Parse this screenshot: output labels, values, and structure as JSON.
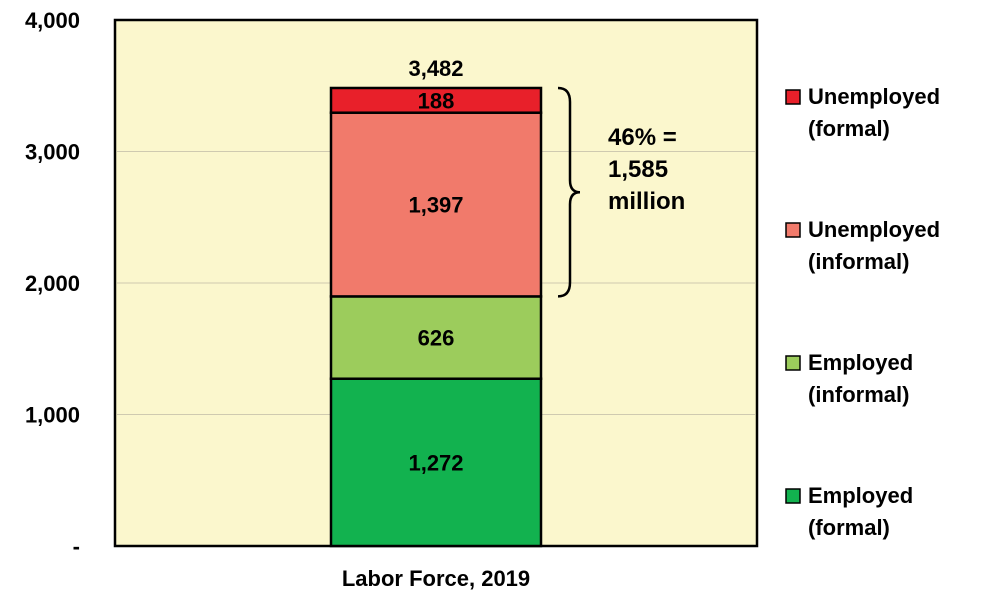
{
  "chart_data": {
    "type": "bar",
    "stacked": true,
    "categories": [
      "Labor Force, 2019"
    ],
    "series": [
      {
        "name": "Employed (formal)",
        "legend_lines": [
          "Employed",
          "(formal)"
        ],
        "values": [
          1272
        ],
        "label": "1,272",
        "color": "#12b24f"
      },
      {
        "name": "Employed (informal)",
        "legend_lines": [
          "Employed",
          "(informal)"
        ],
        "values": [
          626
        ],
        "label": "626",
        "color": "#9ccc5c"
      },
      {
        "name": "Unemployed (informal)",
        "legend_lines": [
          "Unemployed",
          "(informal)"
        ],
        "values": [
          1397
        ],
        "label": "1,397",
        "color": "#f17a6b"
      },
      {
        "name": "Unemployed (formal)",
        "legend_lines": [
          "Unemployed",
          "(formal)"
        ],
        "values": [
          188
        ],
        "label": "188",
        "color": "#e8202a"
      }
    ],
    "total_label": "3,482",
    "annotation": {
      "lines": [
        "46% =",
        "1,585",
        "million"
      ],
      "covers_series": [
        "Unemployed (informal)",
        "Unemployed (formal)"
      ]
    },
    "xlabel": "Labor Force, 2019",
    "ylabel": "",
    "ylim": [
      0,
      4000
    ],
    "yticks": [
      0,
      1000,
      2000,
      3000,
      4000
    ],
    "ytick_labels": [
      "-",
      "1,000",
      "2,000",
      "3,000",
      "4,000"
    ],
    "grid": true,
    "legend_position": "right",
    "plot_background": "#fbf7cd"
  }
}
